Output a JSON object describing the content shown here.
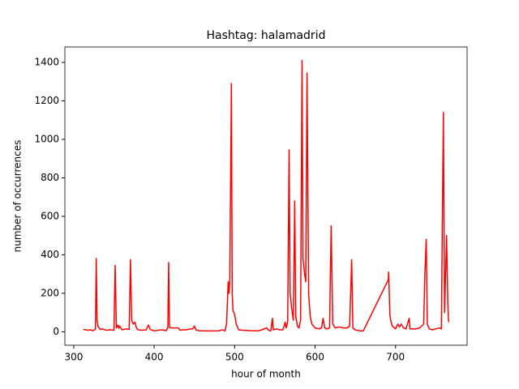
{
  "chart_data": {
    "type": "line",
    "title": "Hashtag: halamadrid",
    "x_label": "hour of month",
    "y_label": "number of occurrences",
    "x": [
      312,
      315,
      318,
      321,
      324,
      327,
      328,
      329,
      330,
      333,
      336,
      340,
      345,
      350,
      351.5,
      353,
      355,
      356,
      357,
      360,
      365,
      369,
      370.5,
      372,
      374,
      376,
      378,
      380,
      385,
      390,
      393,
      395,
      400,
      405,
      410,
      415,
      417,
      418,
      419,
      420,
      425,
      430,
      432,
      436,
      440,
      445,
      448,
      450,
      452,
      456,
      460,
      470,
      480,
      485,
      488,
      490,
      492,
      493,
      494,
      496,
      497,
      498,
      500,
      502,
      505,
      510,
      520,
      530,
      540,
      542,
      545,
      547,
      548,
      552,
      556,
      560,
      563,
      564,
      565,
      566,
      567.7,
      569,
      571,
      573,
      574.7,
      576,
      578,
      580,
      582,
      583.8,
      585,
      587,
      588.5,
      590,
      592,
      594,
      596,
      600,
      605,
      608,
      610,
      612,
      615,
      618,
      620,
      622,
      625,
      630,
      635,
      640,
      643,
      645.5,
      647,
      650,
      655,
      660,
      691,
      691.5,
      693,
      694,
      696,
      700,
      703,
      705,
      707,
      710,
      713,
      717,
      718,
      722,
      725,
      730,
      735,
      736.5,
      738.2,
      739.5,
      742,
      746,
      750,
      755,
      757,
      759.5,
      761,
      763.5,
      765,
      766
    ],
    "series": [
      {
        "name": "halamadrid",
        "color": "#ff0000",
        "values": [
          12,
          10,
          8,
          10,
          6,
          14,
          380,
          60,
          30,
          12,
          15,
          8,
          10,
          8,
          345,
          20,
          35,
          18,
          30,
          10,
          15,
          12,
          375,
          60,
          40,
          50,
          20,
          10,
          8,
          10,
          35,
          12,
          5,
          8,
          10,
          6,
          20,
          360,
          25,
          20,
          20,
          20,
          8,
          10,
          10,
          15,
          15,
          30,
          10,
          5,
          5,
          4,
          5,
          10,
          5,
          40,
          260,
          200,
          260,
          1290,
          200,
          110,
          90,
          40,
          10,
          8,
          6,
          5,
          20,
          8,
          5,
          70,
          10,
          15,
          10,
          10,
          50,
          20,
          30,
          60,
          945,
          200,
          120,
          60,
          680,
          80,
          30,
          20,
          60,
          1410,
          380,
          300,
          260,
          1345,
          200,
          80,
          40,
          20,
          15,
          20,
          70,
          20,
          15,
          20,
          550,
          40,
          20,
          25,
          20,
          20,
          30,
          375,
          20,
          10,
          5,
          5,
          270,
          310,
          90,
          60,
          30,
          15,
          40,
          25,
          40,
          20,
          15,
          70,
          15,
          15,
          15,
          20,
          40,
          300,
          480,
          40,
          15,
          10,
          15,
          20,
          15,
          1140,
          100,
          500,
          150,
          50
        ]
      }
    ],
    "xlim": [
      289,
      789
    ],
    "ylim": [
      -70,
      1480
    ],
    "xticks": [
      300,
      400,
      500,
      600,
      700
    ],
    "yticks": [
      0,
      200,
      400,
      600,
      800,
      1000,
      1200,
      1400
    ]
  }
}
